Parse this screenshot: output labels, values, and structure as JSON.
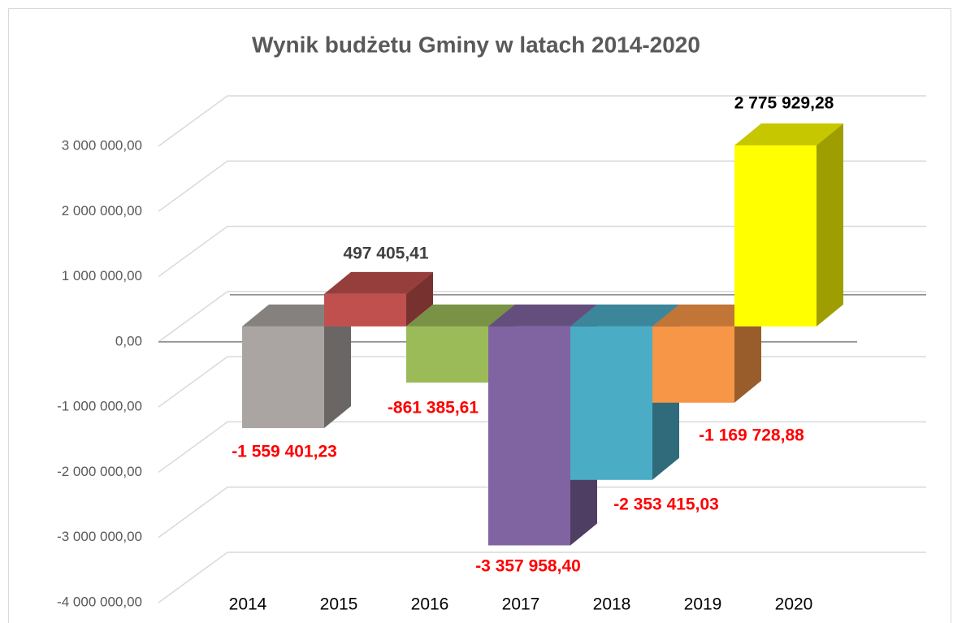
{
  "chart_data": {
    "type": "bar3d",
    "title": "Wynik budżetu Gminy w latach 2014-2020",
    "categories": [
      "2014",
      "2015",
      "2016",
      "2017",
      "2018",
      "2019",
      "2020"
    ],
    "values": [
      -1559401.23,
      497405.41,
      -861385.61,
      -3357958.4,
      -2353415.03,
      -1169728.88,
      2775929.28
    ],
    "value_labels": [
      "-1 559 401,23",
      "497 405,41",
      "-861 385,61",
      "-3 357 958,40",
      "-2 353 415,03",
      "-1 169 728,88",
      "2 775 929,28"
    ],
    "colors": [
      "#aaa5a3",
      "#c0504d",
      "#9bbb59",
      "#8064a2",
      "#4bacc6",
      "#f79646",
      "#ffff00"
    ],
    "label_colors": [
      "#ff0000",
      "#404040",
      "#ff0000",
      "#ff0000",
      "#ff0000",
      "#ff0000",
      "#000000"
    ],
    "ylim": [
      -4000000,
      3000000
    ],
    "yticks": [
      {
        "value": -4000000,
        "label": "-4 000 000,00"
      },
      {
        "value": -3000000,
        "label": "-3 000 000,00"
      },
      {
        "value": -2000000,
        "label": "-2 000 000,00"
      },
      {
        "value": -1000000,
        "label": "-1 000 000,00"
      },
      {
        "value": 0,
        "label": "0,00"
      },
      {
        "value": 1000000,
        "label": "1 000 000,00"
      },
      {
        "value": 2000000,
        "label": "2 000 000,00"
      },
      {
        "value": 3000000,
        "label": "3 000 000,00"
      }
    ],
    "grid": true
  }
}
